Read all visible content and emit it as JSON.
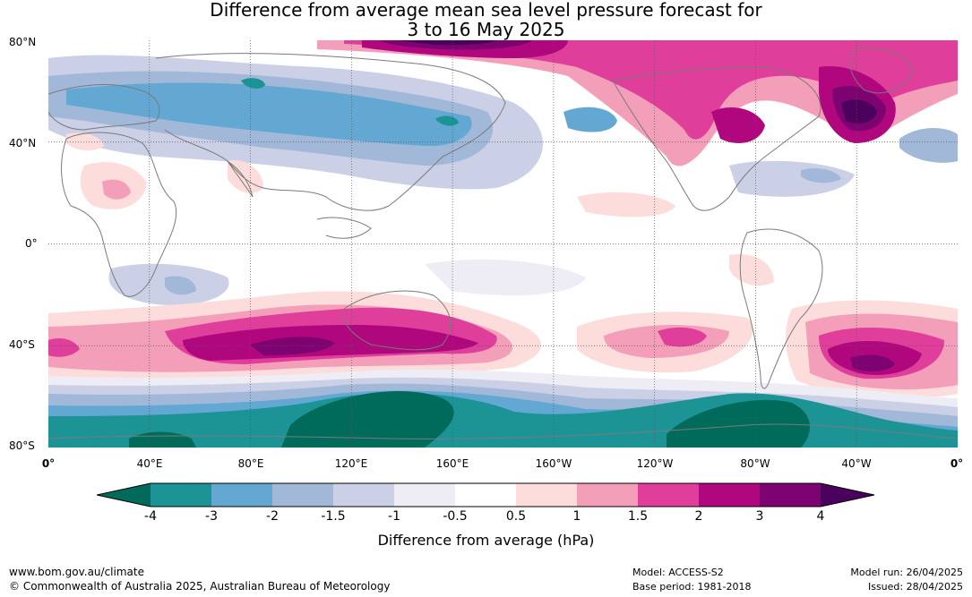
{
  "title_line1": "Difference from average mean sea level pressure forecast for",
  "title_line2": "3 to 16 May 2025",
  "lat_labels": [
    "80°N",
    "40°N",
    "0°",
    "40°S",
    "80°S"
  ],
  "lon_labels": [
    "0°",
    "40°E",
    "80°E",
    "120°E",
    "160°E",
    "160°W",
    "120°W",
    "80°W",
    "40°W",
    "0°"
  ],
  "colorbar": {
    "label": "Difference from average (hPa)",
    "ticks": [
      "-4",
      "-3",
      "-2",
      "-1.5",
      "-1",
      "-0.5",
      "0.5",
      "1",
      "1.5",
      "2",
      "3",
      "4"
    ],
    "colors": {
      "lt_-4": "#006b5a",
      "-4_-3": "#1c9496",
      "-3_-2": "#63a8d2",
      "-2_-1.5": "#a2b8d8",
      "-1.5_-1": "#ccd0e6",
      "-1_-0.5": "#eeecf4",
      "-0.5_0.5": "#ffffff",
      "0.5_1": "#fddcdc",
      "1_1.5": "#f49fba",
      "1.5_2": "#df3e9b",
      "2_3": "#b0077e",
      "3_4": "#7d0272",
      "gt_4": "#4a005c"
    }
  },
  "footer": {
    "url": "www.bom.gov.au/climate",
    "copyright": "© Commonwealth of Australia 2025, Australian Bureau of Meteorology",
    "model": "Model: ACCESS-S2",
    "base_period": "Base period: 1981-2018",
    "model_run": "Model run: 26/04/2025",
    "issued": "Issued: 28/04/2025"
  }
}
